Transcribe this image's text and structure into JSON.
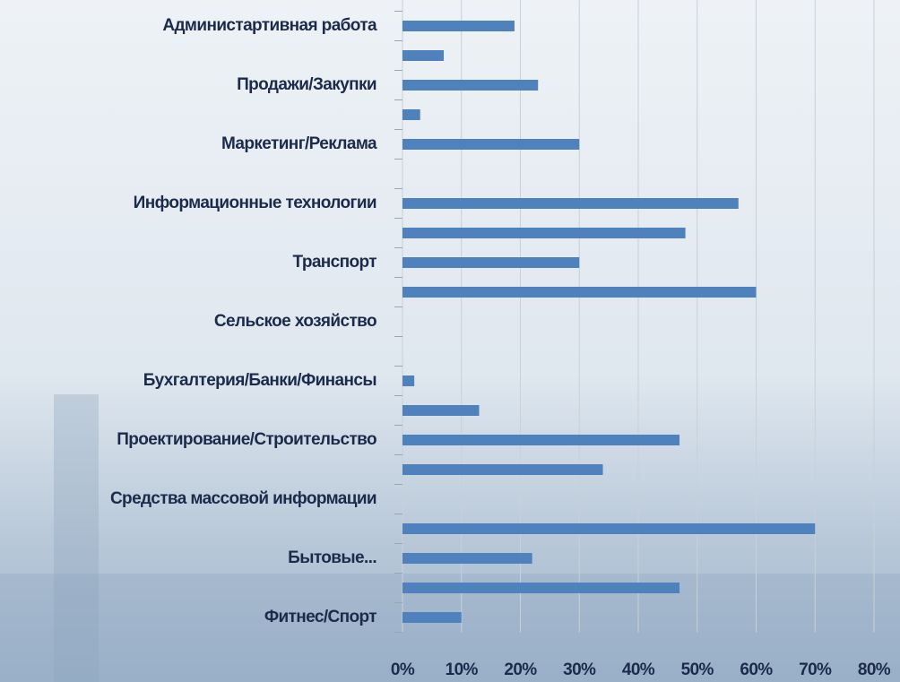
{
  "chart_data": {
    "type": "hbar",
    "categories": [
      "Администартивная работа",
      null,
      "Продажи/Закупки",
      null,
      "Маркетинг/Реклама",
      null,
      "Информационные технологии",
      null,
      "Транспорт",
      null,
      "Сельское хозяйство",
      null,
      "Бухгалтерия/Банки/Финансы",
      null,
      "Проектирование/Строительство",
      null,
      "Средства массовой информации",
      null,
      "Бытовые...",
      null,
      "Фитнес/Спорт"
    ],
    "values": [
      19,
      7,
      23,
      3,
      30,
      0,
      57,
      48,
      30,
      60,
      0,
      0,
      2,
      13,
      47,
      34,
      0,
      70,
      22,
      47,
      10
    ],
    "color": "#4f81bd",
    "xlim": [
      0,
      80
    ],
    "xticks": [
      {
        "value": 0,
        "label": "0%"
      },
      {
        "value": 10,
        "label": "10%"
      },
      {
        "value": 20,
        "label": "20%"
      },
      {
        "value": 30,
        "label": "30%"
      },
      {
        "value": 40,
        "label": "40%"
      },
      {
        "value": 50,
        "label": "50%"
      },
      {
        "value": 60,
        "label": "60%"
      },
      {
        "value": 70,
        "label": "70%"
      },
      {
        "value": 80,
        "label": "80%"
      }
    ],
    "grid": true
  }
}
